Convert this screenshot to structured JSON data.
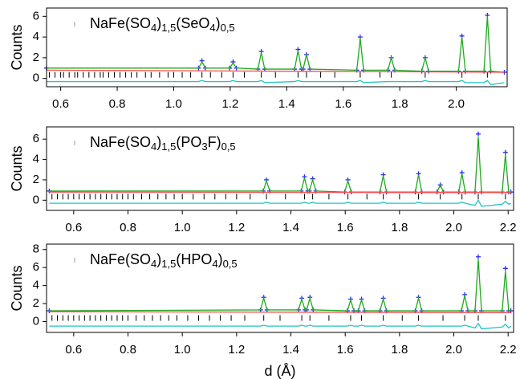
{
  "chart_data": [
    {
      "type": "line",
      "legend_label": [
        "NaFe(SO",
        "4",
        ")",
        "1,5",
        "(SeO",
        "4",
        ")",
        "0,5"
      ],
      "ylabel": "Counts",
      "xlim": [
        0.55,
        2.18
      ],
      "xticks": [
        0.6,
        0.8,
        {
          "value": 1,
          "label": "1.0"
        },
        1.2,
        1.4,
        1.6,
        1.8,
        {
          "value": 2,
          "label": "2.0"
        }
      ],
      "ylim": [
        -0.8,
        6.8
      ],
      "yticks": [
        0,
        2,
        4,
        6
      ],
      "series": [
        {
          "marker": "+",
          "color": "#2b2bef",
          "x": [
            0.55,
            1.088,
            1.1,
            1.112,
            1.198,
            1.21,
            1.222,
            1.298,
            1.31,
            1.322,
            1.428,
            1.44,
            1.452,
            1.458,
            1.47,
            1.482,
            1.648,
            1.66,
            1.672,
            1.758,
            1.77,
            1.782,
            1.878,
            1.89,
            1.902,
            2.008,
            2.02,
            2.032,
            2.098,
            2.11,
            2.122,
            2.17
          ],
          "values": [
            1.0,
            1.0,
            1.7,
            1.0,
            1.0,
            1.6,
            1.0,
            0.9,
            2.6,
            0.9,
            0.9,
            2.8,
            0.9,
            0.9,
            2.3,
            0.9,
            0.8,
            4.0,
            0.8,
            0.8,
            2.0,
            0.8,
            0.7,
            2.0,
            0.7,
            0.7,
            4.1,
            0.7,
            0.7,
            6.1,
            0.7,
            0.6
          ]
        },
        {
          "color": "#1faa1f",
          "x": [
            0.55,
            1.088,
            1.1,
            1.112,
            1.198,
            1.21,
            1.222,
            1.298,
            1.31,
            1.322,
            1.428,
            1.44,
            1.452,
            1.458,
            1.47,
            1.482,
            1.648,
            1.66,
            1.672,
            1.758,
            1.77,
            1.782,
            1.878,
            1.89,
            1.902,
            2.008,
            2.02,
            2.032,
            2.098,
            2.11,
            2.122,
            2.17
          ],
          "values": [
            1.0,
            1.0,
            1.6,
            1.0,
            1.0,
            1.5,
            1.0,
            0.9,
            2.5,
            0.9,
            0.9,
            2.7,
            0.9,
            0.9,
            2.3,
            0.9,
            0.8,
            3.9,
            0.8,
            0.8,
            2.0,
            0.8,
            0.7,
            2.0,
            0.7,
            0.7,
            4.0,
            0.7,
            0.7,
            6.0,
            0.7,
            0.6
          ]
        },
        {
          "color": "#ff4a4a",
          "x": [
            0.55,
            2.17
          ],
          "values": [
            0.8,
            0.6
          ]
        },
        {
          "color": "#22c4c4",
          "x": [
            0.55,
            1.088,
            1.1,
            1.112,
            1.198,
            1.21,
            1.222,
            1.298,
            1.31,
            1.322,
            1.428,
            1.44,
            1.452,
            1.458,
            1.47,
            1.482,
            1.648,
            1.66,
            1.672,
            1.758,
            1.77,
            1.782,
            1.878,
            1.89,
            1.902,
            2.008,
            2.02,
            2.032,
            2.098,
            2.11,
            2.122,
            2.17
          ],
          "values": [
            -0.3,
            -0.3,
            -0.2,
            -0.3,
            -0.3,
            -0.2,
            -0.3,
            -0.3,
            -0.2,
            -0.4,
            -0.3,
            -0.2,
            -0.3,
            -0.3,
            -0.3,
            -0.3,
            -0.3,
            -0.2,
            -0.4,
            -0.3,
            -0.3,
            -0.3,
            -0.3,
            -0.2,
            -0.3,
            -0.3,
            -0.2,
            -0.4,
            -0.4,
            -0.2,
            -0.6,
            -0.4
          ]
        }
      ],
      "reflections": {
        "color": "#000000",
        "x": [
          0.56,
          0.58,
          0.6,
          0.61,
          0.63,
          0.65,
          0.66,
          0.68,
          0.7,
          0.72,
          0.74,
          0.75,
          0.77,
          0.79,
          0.81,
          0.83,
          0.85,
          0.87,
          0.9,
          0.92,
          0.95,
          0.98,
          1.0,
          1.03,
          1.06,
          1.1,
          1.13,
          1.17,
          1.21,
          1.25,
          1.31,
          1.36,
          1.44,
          1.47,
          1.52,
          1.57,
          1.66,
          1.73,
          1.77,
          1.89,
          2.02,
          2.11
        ]
      }
    },
    {
      "type": "line",
      "legend_label": [
        "NaFe(SO",
        "4",
        ")",
        "1,5",
        "(PO",
        "3",
        "F)",
        "0,5"
      ],
      "ylabel": "Counts",
      "xlim": [
        0.5,
        2.22
      ],
      "xticks": [
        0.6,
        0.8,
        {
          "value": 1,
          "label": "1.0"
        },
        1.2,
        1.4,
        1.6,
        1.8,
        {
          "value": 2,
          "label": "2.0"
        },
        2.2
      ],
      "ylim": [
        -1,
        7.2
      ],
      "yticks": [
        0,
        2,
        4,
        6
      ],
      "series": [
        {
          "marker": "+",
          "color": "#2b2bef",
          "x": [
            0.51,
            1.298,
            1.31,
            1.322,
            1.438,
            1.45,
            1.462,
            1.468,
            1.48,
            1.492,
            1.598,
            1.61,
            1.622,
            1.728,
            1.74,
            1.752,
            1.858,
            1.87,
            1.882,
            1.938,
            1.95,
            1.962,
            2.018,
            2.03,
            2.042,
            2.078,
            2.09,
            2.102,
            2.178,
            2.19,
            2.202,
            2.21
          ],
          "values": [
            0.9,
            0.9,
            2.0,
            0.9,
            0.9,
            2.3,
            0.9,
            0.9,
            2.1,
            0.9,
            0.8,
            2.0,
            0.8,
            0.8,
            2.5,
            0.8,
            0.8,
            2.6,
            0.8,
            0.8,
            1.5,
            0.8,
            0.8,
            2.7,
            0.8,
            0.8,
            6.5,
            0.8,
            0.8,
            4.7,
            0.8,
            0.8
          ]
        },
        {
          "color": "#1faa1f",
          "x": [
            0.51,
            1.298,
            1.31,
            1.322,
            1.438,
            1.45,
            1.462,
            1.468,
            1.48,
            1.492,
            1.598,
            1.61,
            1.622,
            1.728,
            1.74,
            1.752,
            1.858,
            1.87,
            1.882,
            1.938,
            1.95,
            1.962,
            2.018,
            2.03,
            2.042,
            2.078,
            2.09,
            2.102,
            2.178,
            2.19,
            2.202,
            2.21
          ],
          "values": [
            0.9,
            0.9,
            1.9,
            0.9,
            0.9,
            2.2,
            0.9,
            0.9,
            2.0,
            0.9,
            0.8,
            1.9,
            0.8,
            0.8,
            2.4,
            0.8,
            0.8,
            2.5,
            0.8,
            0.8,
            1.5,
            0.8,
            0.8,
            2.6,
            0.8,
            0.8,
            6.2,
            0.8,
            0.8,
            4.5,
            0.8,
            0.8
          ]
        },
        {
          "color": "#ff4a4a",
          "x": [
            0.51,
            2.21
          ],
          "values": [
            0.8,
            0.75
          ]
        },
        {
          "color": "#22c4c4",
          "x": [
            0.51,
            1.298,
            1.31,
            1.322,
            1.438,
            1.45,
            1.462,
            1.468,
            1.48,
            1.492,
            1.598,
            1.61,
            1.622,
            1.728,
            1.74,
            1.752,
            1.858,
            1.87,
            1.882,
            1.938,
            1.95,
            1.962,
            2.018,
            2.03,
            2.042,
            2.078,
            2.09,
            2.102,
            2.178,
            2.19,
            2.202,
            2.21
          ],
          "values": [
            -0.3,
            -0.3,
            -0.2,
            -0.3,
            -0.3,
            -0.2,
            -0.3,
            -0.3,
            -0.2,
            -0.3,
            -0.3,
            -0.2,
            -0.3,
            -0.3,
            -0.2,
            -0.3,
            -0.3,
            -0.2,
            -0.3,
            -0.3,
            -0.3,
            -0.3,
            -0.3,
            -0.2,
            -0.3,
            -0.5,
            0.0,
            -0.6,
            -0.4,
            -0.1,
            -0.4,
            -0.3
          ]
        }
      ],
      "reflections": {
        "color": "#000000",
        "x": [
          0.52,
          0.54,
          0.56,
          0.58,
          0.6,
          0.62,
          0.64,
          0.66,
          0.68,
          0.7,
          0.72,
          0.74,
          0.76,
          0.78,
          0.8,
          0.82,
          0.85,
          0.88,
          0.91,
          0.94,
          0.97,
          1.0,
          1.04,
          1.08,
          1.12,
          1.16,
          1.2,
          1.25,
          1.31,
          1.38,
          1.45,
          1.48,
          1.54,
          1.61,
          1.68,
          1.74,
          1.8,
          1.87,
          1.95,
          2.03,
          2.09,
          2.19
        ]
      }
    },
    {
      "type": "line",
      "legend_label": [
        "NaFe(SO",
        "4",
        ")",
        "1,5",
        "(HPO",
        "4",
        ")",
        "0,5"
      ],
      "ylabel": "Counts",
      "xlabel": "d (Å)",
      "xlim": [
        0.5,
        2.22
      ],
      "xticks": [
        0.6,
        0.8,
        {
          "value": 1,
          "label": "1.0"
        },
        1.2,
        1.4,
        1.6,
        1.8,
        {
          "value": 2,
          "label": "2.0"
        },
        2.2
      ],
      "ylim": [
        -1.2,
        8.6
      ],
      "yticks": [
        0,
        2,
        4,
        6,
        8
      ],
      "series": [
        {
          "marker": "+",
          "color": "#2b2bef",
          "x": [
            0.51,
            1.288,
            1.3,
            1.312,
            1.428,
            1.44,
            1.452,
            1.458,
            1.47,
            1.482,
            1.608,
            1.62,
            1.632,
            1.648,
            1.66,
            1.672,
            1.728,
            1.74,
            1.752,
            1.858,
            1.87,
            1.882,
            2.028,
            2.04,
            2.052,
            2.078,
            2.09,
            2.102,
            2.178,
            2.19,
            2.202,
            2.21
          ],
          "values": [
            1.2,
            1.3,
            2.7,
            1.3,
            1.3,
            2.6,
            1.3,
            1.3,
            2.7,
            1.3,
            1.2,
            2.5,
            1.2,
            1.2,
            2.5,
            1.2,
            1.2,
            2.6,
            1.2,
            1.2,
            2.7,
            1.2,
            1.2,
            3.0,
            1.2,
            1.2,
            7.2,
            1.2,
            1.2,
            5.9,
            1.2,
            1.2
          ]
        },
        {
          "color": "#1faa1f",
          "x": [
            0.51,
            1.288,
            1.3,
            1.312,
            1.428,
            1.44,
            1.452,
            1.458,
            1.47,
            1.482,
            1.608,
            1.62,
            1.632,
            1.648,
            1.66,
            1.672,
            1.728,
            1.74,
            1.752,
            1.858,
            1.87,
            1.882,
            2.028,
            2.04,
            2.052,
            2.078,
            2.09,
            2.102,
            2.178,
            2.19,
            2.202,
            2.21
          ],
          "values": [
            1.2,
            1.3,
            2.6,
            1.3,
            1.3,
            2.5,
            1.3,
            1.3,
            2.6,
            1.3,
            1.2,
            2.4,
            1.2,
            1.2,
            2.4,
            1.2,
            1.2,
            2.5,
            1.2,
            1.2,
            2.6,
            1.2,
            1.2,
            2.9,
            1.2,
            1.2,
            6.9,
            1.2,
            1.2,
            5.6,
            1.2,
            1.2
          ]
        },
        {
          "color": "#ff4a4a",
          "x": [
            0.51,
            2.21
          ],
          "values": [
            1.1,
            1.0
          ]
        },
        {
          "color": "#22c4c4",
          "x": [
            0.51,
            1.288,
            1.3,
            1.312,
            1.428,
            1.44,
            1.452,
            1.458,
            1.47,
            1.482,
            1.608,
            1.62,
            1.632,
            1.648,
            1.66,
            1.672,
            1.728,
            1.74,
            1.752,
            1.858,
            1.87,
            1.882,
            2.028,
            2.04,
            2.052,
            2.078,
            2.09,
            2.102,
            2.178,
            2.19,
            2.202,
            2.21
          ],
          "values": [
            -0.5,
            -0.5,
            -0.4,
            -0.5,
            -0.5,
            -0.4,
            -0.5,
            -0.5,
            -0.4,
            -0.5,
            -0.5,
            -0.4,
            -0.5,
            -0.5,
            -0.4,
            -0.5,
            -0.5,
            -0.4,
            -0.5,
            -0.5,
            -0.4,
            -0.5,
            -0.5,
            -0.4,
            -0.5,
            -0.7,
            -0.2,
            -0.8,
            -0.6,
            -0.3,
            -0.7,
            -0.5
          ]
        }
      ],
      "reflections": {
        "color": "#000000",
        "x": [
          0.52,
          0.54,
          0.56,
          0.58,
          0.6,
          0.62,
          0.64,
          0.66,
          0.68,
          0.7,
          0.72,
          0.74,
          0.76,
          0.78,
          0.8,
          0.83,
          0.86,
          0.89,
          0.92,
          0.95,
          0.98,
          1.02,
          1.06,
          1.1,
          1.14,
          1.18,
          1.23,
          1.3,
          1.36,
          1.44,
          1.47,
          1.54,
          1.62,
          1.66,
          1.74,
          1.81,
          1.87,
          1.96,
          2.04,
          2.09,
          2.19
        ]
      }
    }
  ]
}
